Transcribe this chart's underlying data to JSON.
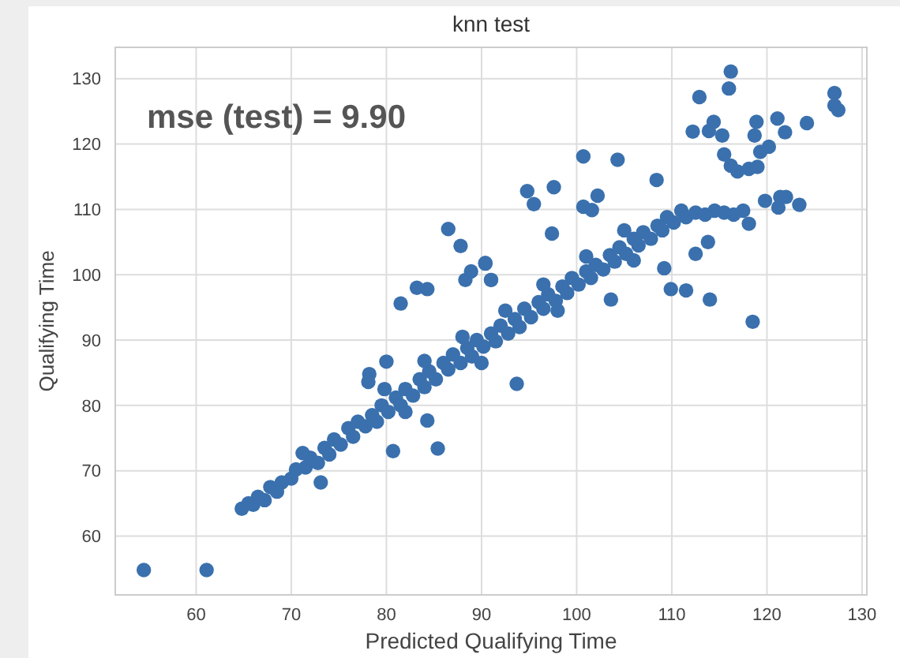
{
  "chart_data": {
    "type": "scatter",
    "title": "knn test",
    "xlabel": "Predicted Qualifying Time",
    "ylabel": "Qualifying Time",
    "annotations": [
      "mse (test) = 9.90"
    ],
    "xlim": [
      51.5,
      130.5
    ],
    "ylim": [
      51,
      134.8
    ],
    "xticks": [
      60,
      70,
      80,
      90,
      100,
      110,
      120,
      130
    ],
    "yticks": [
      60,
      70,
      80,
      90,
      100,
      110,
      120,
      130
    ],
    "grid": true,
    "marker": "circle",
    "series": [
      {
        "color": "#3a70ad",
        "x": [
          64.8,
          65.5,
          66.0,
          66.5,
          67.2,
          67.8,
          68.5,
          69.0,
          70.0,
          70.5,
          71.5,
          72.0,
          72.8,
          73.5,
          74.0,
          74.5,
          75.2,
          76.0,
          76.5,
          77.0,
          77.8,
          78.5,
          79.0,
          79.5,
          80.2,
          81.0,
          81.5,
          82.0,
          82.8,
          83.5,
          84.0,
          84.5,
          85.2,
          86.0,
          86.5,
          87.0,
          87.8,
          88.5,
          89.0,
          89.5,
          90.2,
          91.0,
          91.5,
          92.0,
          92.8,
          93.5,
          94.0,
          94.5,
          95.2,
          96.0,
          96.5,
          97.0,
          97.8,
          98.5,
          99.0,
          99.5,
          100.2,
          101.0,
          101.5,
          102.0,
          102.8,
          103.5,
          104.0,
          104.5,
          105.2,
          106.0,
          106.5,
          107.0,
          107.8,
          108.5,
          109.0,
          109.5,
          110.2,
          111.0,
          111.5,
          112.5,
          113.5,
          114.5,
          115.5,
          116.5,
          117.5,
          79.8,
          84.0,
          88.0,
          92.5,
          96.5,
          101.0,
          105.0,
          82.0,
          90.0,
          98.0,
          106.0,
          116.2,
          116.0,
          112.9,
          127.1,
          127.1,
          127.5,
          112.2,
          113.9,
          114.4,
          115.3,
          118.9,
          118.7,
          121.1,
          121.9,
          124.2,
          115.5,
          116.2,
          116.9,
          118.1,
          119.0,
          119.3,
          120.2,
          121.4,
          122.0,
          119.8,
          100.7,
          104.3,
          94.8,
          95.5,
          97.6,
          102.2,
          100.7,
          108.4,
          86.5,
          87.8,
          90.4,
          88.9,
          88.3,
          91.0,
          81.5,
          83.2,
          84.3,
          80.0,
          78.2,
          78.1,
          85.4,
          80.7,
          84.3,
          73.1,
          71.2,
          54.5,
          61.1,
          93.7,
          103.6,
          109.9,
          111.5,
          114.0,
          118.5,
          112.5,
          109.2,
          97.4,
          90.4,
          91.0,
          121.2,
          123.4,
          118.1,
          113.8,
          101.6
        ],
        "values": [
          64.2,
          65.0,
          64.8,
          66.0,
          65.5,
          67.5,
          66.8,
          68.2,
          68.8,
          70.2,
          70.5,
          72.0,
          71.2,
          73.5,
          72.5,
          74.8,
          74.0,
          76.5,
          75.2,
          77.5,
          76.8,
          78.5,
          77.5,
          80.0,
          79.0,
          81.2,
          80.0,
          82.5,
          81.5,
          84.0,
          82.8,
          85.2,
          84.0,
          86.5,
          85.5,
          87.8,
          86.5,
          88.8,
          87.5,
          90.0,
          89.0,
          91.0,
          89.8,
          92.2,
          91.0,
          93.2,
          92.0,
          94.8,
          93.5,
          95.8,
          94.8,
          97.0,
          96.0,
          98.2,
          97.2,
          99.5,
          98.5,
          100.5,
          99.5,
          101.5,
          100.8,
          103.0,
          102.0,
          104.2,
          103.2,
          105.5,
          104.5,
          106.5,
          105.5,
          107.5,
          106.8,
          108.8,
          108.0,
          109.8,
          108.8,
          109.5,
          109.2,
          109.8,
          109.5,
          109.2,
          109.8,
          82.5,
          86.8,
          90.5,
          94.5,
          98.5,
          102.8,
          106.8,
          79.0,
          86.5,
          94.5,
          102.2,
          131.1,
          128.5,
          127.2,
          127.8,
          125.9,
          125.2,
          121.9,
          122.0,
          123.4,
          121.3,
          123.4,
          121.3,
          123.9,
          121.8,
          123.2,
          118.4,
          116.7,
          115.8,
          116.2,
          116.5,
          118.8,
          119.6,
          111.9,
          111.9,
          111.3,
          118.1,
          117.6,
          112.8,
          110.8,
          113.4,
          112.1,
          110.4,
          114.5,
          107.0,
          104.4,
          101.8,
          100.5,
          99.2,
          99.2,
          95.6,
          98.0,
          97.8,
          86.7,
          84.8,
          83.6,
          73.4,
          73.0,
          77.7,
          68.2,
          72.7,
          54.8,
          54.8,
          83.3,
          96.2,
          97.8,
          97.6,
          96.2,
          92.8,
          103.2,
          101.0,
          106.3,
          101.7,
          99.2,
          110.3,
          110.7,
          107.8,
          105.0,
          109.9
        ]
      }
    ]
  }
}
